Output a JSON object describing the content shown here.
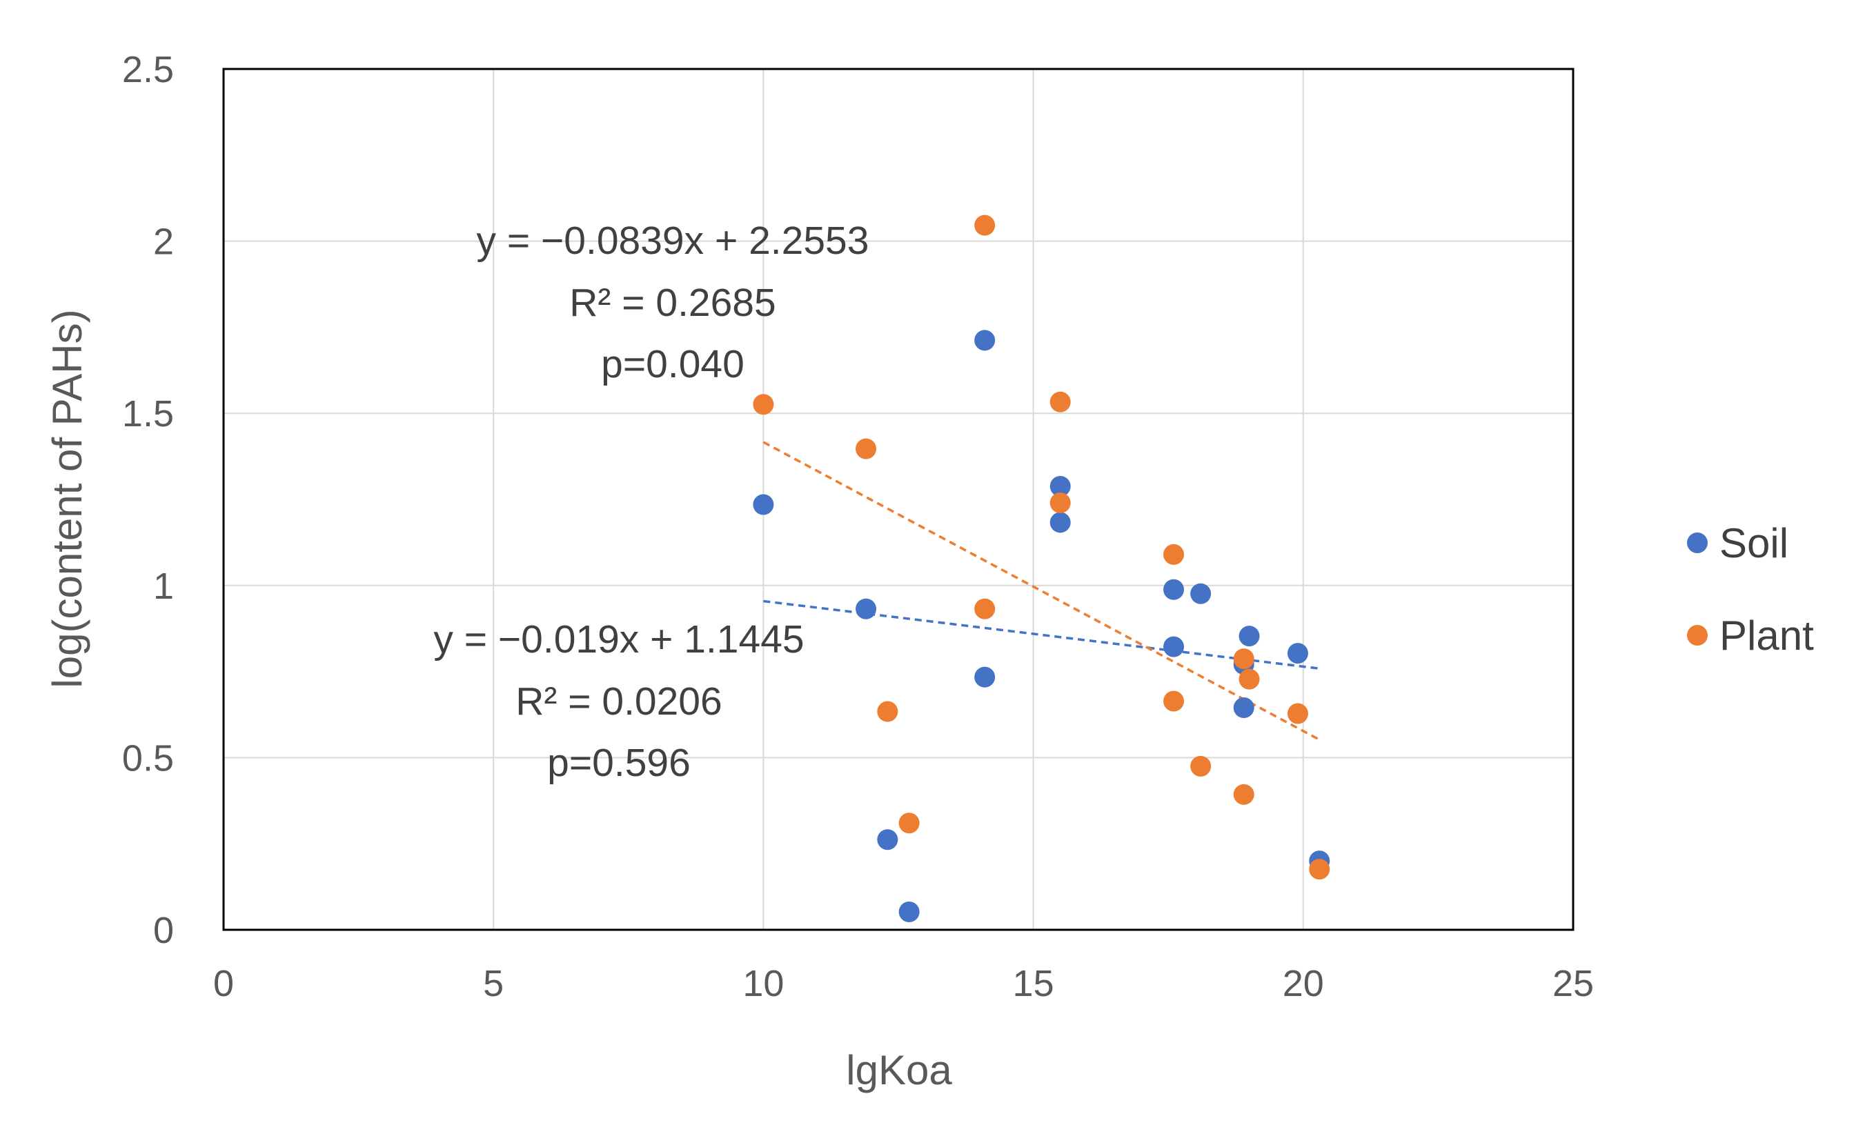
{
  "chart_data": {
    "type": "scatter",
    "title": "",
    "xlabel": "lgKoa",
    "ylabel": "log(content of PAHs)",
    "xlim": [
      0,
      25
    ],
    "ylim": [
      0,
      2.5
    ],
    "x_ticks": [
      "0",
      "5",
      "10",
      "15",
      "20",
      "25"
    ],
    "y_ticks": [
      "0",
      "0.5",
      "1",
      "1.5",
      "2",
      "2.5"
    ],
    "grid": true,
    "legend_position": "right",
    "series": [
      {
        "name": "Soil",
        "color": "#4472C4",
        "points": [
          {
            "x": 10.0,
            "y": 1.235
          },
          {
            "x": 11.9,
            "y": 0.932
          },
          {
            "x": 12.3,
            "y": 0.262
          },
          {
            "x": 12.7,
            "y": 0.052
          },
          {
            "x": 14.1,
            "y": 1.712
          },
          {
            "x": 14.1,
            "y": 0.734
          },
          {
            "x": 15.5,
            "y": 1.288
          },
          {
            "x": 15.5,
            "y": 1.183
          },
          {
            "x": 17.6,
            "y": 0.988
          },
          {
            "x": 17.6,
            "y": 0.822
          },
          {
            "x": 18.1,
            "y": 0.976
          },
          {
            "x": 18.9,
            "y": 0.771
          },
          {
            "x": 18.9,
            "y": 0.645
          },
          {
            "x": 19.0,
            "y": 0.853
          },
          {
            "x": 19.9,
            "y": 0.803
          },
          {
            "x": 20.3,
            "y": 0.2
          }
        ],
        "trendline": {
          "x": [
            10.0,
            20.3
          ],
          "y": [
            0.9545,
            0.7588
          ],
          "equation": "y = −0.019x + 1.1445",
          "r2": "R² = 0.0206",
          "p": "p=0.596"
        }
      },
      {
        "name": "Plant",
        "color": "#ED7D31",
        "points": [
          {
            "x": 10.0,
            "y": 1.526
          },
          {
            "x": 11.9,
            "y": 1.397
          },
          {
            "x": 12.3,
            "y": 0.634
          },
          {
            "x": 12.7,
            "y": 0.31
          },
          {
            "x": 14.1,
            "y": 2.046
          },
          {
            "x": 14.1,
            "y": 0.932
          },
          {
            "x": 15.5,
            "y": 1.533
          },
          {
            "x": 15.5,
            "y": 1.24
          },
          {
            "x": 17.6,
            "y": 1.09
          },
          {
            "x": 17.6,
            "y": 0.664
          },
          {
            "x": 18.1,
            "y": 0.475
          },
          {
            "x": 18.9,
            "y": 0.393
          },
          {
            "x": 18.9,
            "y": 0.787
          },
          {
            "x": 19.0,
            "y": 0.728
          },
          {
            "x": 19.9,
            "y": 0.628
          },
          {
            "x": 20.3,
            "y": 0.176
          }
        ],
        "trendline": {
          "x": [
            10.0,
            20.3
          ],
          "y": [
            1.4163,
            0.5521
          ],
          "equation": "y = −0.0839x + 2.2553",
          "r2": "R² = 0.2685",
          "p": "p=0.040"
        }
      }
    ]
  }
}
